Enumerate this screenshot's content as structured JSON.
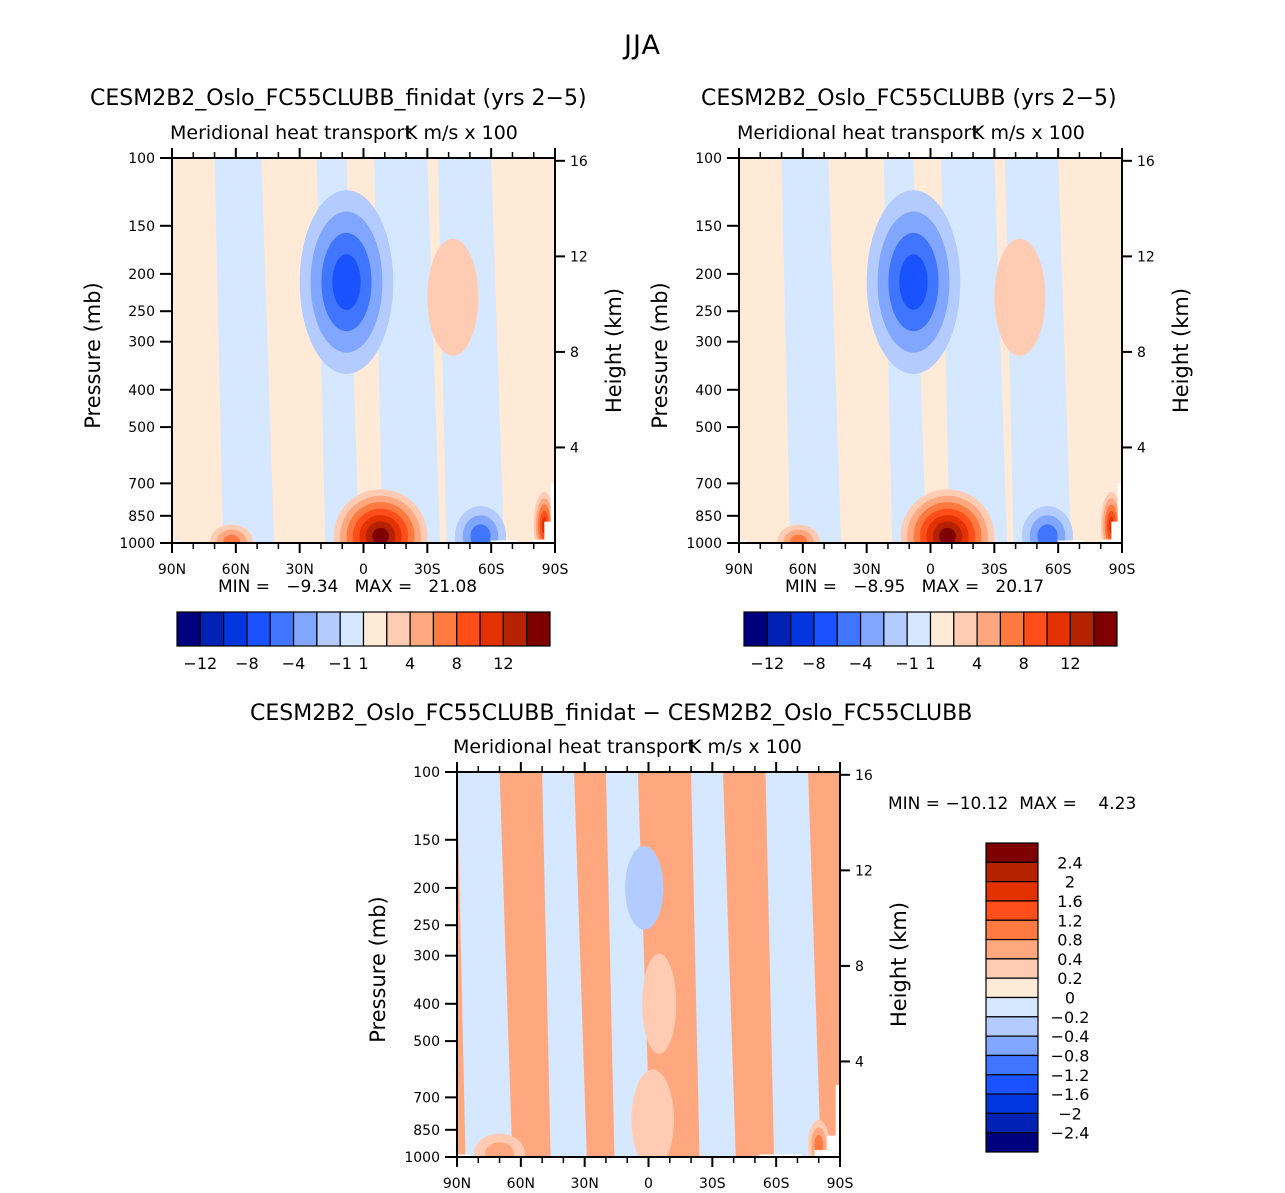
{
  "figure": {
    "title": "JJA"
  },
  "chart_data": [
    {
      "type": "heatmap",
      "id": "panel1",
      "title": "CESM2B2_Oslo_FC55CLUBB_finidat (yrs 2−5)",
      "subtitle_left": "Meridional heat transport",
      "subtitle_right": "K m/s x 100",
      "xlabel": "",
      "ylabel": "Pressure (mb)",
      "ylabel_right": "Height (km)",
      "x_ticks": [
        "90N",
        "60N",
        "30N",
        "0",
        "30S",
        "60S",
        "90S"
      ],
      "x_range": [
        90,
        -90
      ],
      "y_ticks": [
        "100",
        "150",
        "200",
        "250",
        "300",
        "400",
        "500",
        "700",
        "850",
        "1000"
      ],
      "y_range": [
        100,
        1000
      ],
      "y_scale": "log",
      "y_right_ticks": [
        "16",
        "12",
        "8",
        "4"
      ],
      "min_label": "MIN =",
      "min_value": "−9.34",
      "max_label": "MAX =",
      "max_value": "21.08",
      "colorbar": {
        "orientation": "horizontal",
        "levels": [
          "−12",
          "−8",
          "−4",
          "−1",
          "1",
          "4",
          "8",
          "12"
        ],
        "bounds": [
          -12,
          -10,
          -8,
          -6,
          -4,
          -2,
          -1,
          0,
          1,
          2,
          4,
          6,
          8,
          10,
          12
        ],
        "colors": [
          "#00007f",
          "#0022b4",
          "#0035e0",
          "#1a52ff",
          "#4075ff",
          "#80a6ff",
          "#b3cbff",
          "#d6e8ff",
          "#ffead8",
          "#ffcbb3",
          "#ffa880",
          "#ff7a40",
          "#ff4e1a",
          "#e33100",
          "#b42200",
          "#7f0000"
        ]
      },
      "features": [
        {
          "lat": 8,
          "p": 210,
          "dlat": 22,
          "dp": 0.55,
          "level": -6,
          "note": "upper-tropospheric negative core"
        },
        {
          "lat": -42,
          "p": 230,
          "dlat": 12,
          "dp": 0.35,
          "level": 1.5
        },
        {
          "lat": -8,
          "p": 960,
          "dlat": 22,
          "dp": 0.28,
          "level": 14,
          "note": "low-level positive maximum"
        },
        {
          "lat": -55,
          "p": 960,
          "dlat": 12,
          "dp": 0.18,
          "level": -4
        },
        {
          "lat": 62,
          "p": 990,
          "dlat": 10,
          "dp": 0.1,
          "level": 4
        },
        {
          "lat": -85,
          "p": 900,
          "dlat": 5,
          "dp": 0.2,
          "level": 8
        }
      ]
    },
    {
      "type": "heatmap",
      "id": "panel2",
      "title": "CESM2B2_Oslo_FC55CLUBB (yrs 2−5)",
      "subtitle_left": "Meridional heat transport",
      "subtitle_right": "K m/s x 100",
      "ylabel": "Pressure (mb)",
      "ylabel_right": "Height (km)",
      "x_ticks": [
        "90N",
        "60N",
        "30N",
        "0",
        "30S",
        "60S",
        "90S"
      ],
      "x_range": [
        90,
        -90
      ],
      "y_ticks": [
        "100",
        "150",
        "200",
        "250",
        "300",
        "400",
        "500",
        "700",
        "850",
        "1000"
      ],
      "y_range": [
        100,
        1000
      ],
      "y_scale": "log",
      "y_right_ticks": [
        "16",
        "12",
        "8",
        "4"
      ],
      "min_label": "MIN =",
      "min_value": "−8.95",
      "max_label": "MAX =",
      "max_value": "20.17",
      "colorbar": {
        "orientation": "horizontal",
        "levels": [
          "−12",
          "−8",
          "−4",
          "−1",
          "1",
          "4",
          "8",
          "12"
        ],
        "bounds": [
          -12,
          -10,
          -8,
          -6,
          -4,
          -2,
          -1,
          0,
          1,
          2,
          4,
          6,
          8,
          10,
          12
        ],
        "colors": [
          "#00007f",
          "#0022b4",
          "#0035e0",
          "#1a52ff",
          "#4075ff",
          "#80a6ff",
          "#b3cbff",
          "#d6e8ff",
          "#ffead8",
          "#ffcbb3",
          "#ffa880",
          "#ff7a40",
          "#ff4e1a",
          "#e33100",
          "#b42200",
          "#7f0000"
        ]
      },
      "features": [
        {
          "lat": 8,
          "p": 210,
          "dlat": 22,
          "dp": 0.55,
          "level": -6
        },
        {
          "lat": -42,
          "p": 230,
          "dlat": 12,
          "dp": 0.35,
          "level": 1.5
        },
        {
          "lat": -8,
          "p": 960,
          "dlat": 22,
          "dp": 0.28,
          "level": 14
        },
        {
          "lat": -55,
          "p": 960,
          "dlat": 12,
          "dp": 0.18,
          "level": -4
        },
        {
          "lat": 62,
          "p": 990,
          "dlat": 10,
          "dp": 0.1,
          "level": 4
        },
        {
          "lat": -85,
          "p": 900,
          "dlat": 5,
          "dp": 0.2,
          "level": 8
        }
      ]
    },
    {
      "type": "heatmap",
      "id": "panel3",
      "title": "CESM2B2_Oslo_FC55CLUBB_finidat − CESM2B2_Oslo_FC55CLUBB",
      "subtitle_left": "Meridional heat transport",
      "subtitle_right": "K m/s x 100",
      "ylabel": "Pressure (mb)",
      "ylabel_right": "Height (km)",
      "x_ticks": [
        "90N",
        "60N",
        "30N",
        "0",
        "30S",
        "60S",
        "90S"
      ],
      "x_range": [
        90,
        -90
      ],
      "y_ticks": [
        "100",
        "150",
        "200",
        "250",
        "300",
        "400",
        "500",
        "700",
        "850",
        "1000"
      ],
      "y_range": [
        100,
        1000
      ],
      "y_scale": "log",
      "y_right_ticks": [
        "16",
        "12",
        "8",
        "4"
      ],
      "min_label": "MIN =",
      "min_value": "−10.12",
      "max_label": "MAX =",
      "max_value": "4.23",
      "colorbar": {
        "orientation": "vertical",
        "levels": [
          "2.4",
          "2",
          "1.6",
          "1.2",
          "0.8",
          "0.4",
          "0.2",
          "0",
          "−0.2",
          "−0.4",
          "−0.8",
          "−1.2",
          "−1.6",
          "−2",
          "−2.4"
        ],
        "bounds": [
          -2.4,
          -2,
          -1.6,
          -1.2,
          -0.8,
          -0.4,
          -0.2,
          0,
          0.2,
          0.4,
          0.8,
          1.2,
          1.6,
          2,
          2.4
        ],
        "colors": [
          "#00007f",
          "#0022b4",
          "#0035e0",
          "#1a52ff",
          "#4075ff",
          "#80a6ff",
          "#b3cbff",
          "#d6e8ff",
          "#ffead8",
          "#ffcbb3",
          "#ffa880",
          "#ff7a40",
          "#ff4e1a",
          "#e33100",
          "#b42200",
          "#7f0000"
        ]
      },
      "features": [
        {
          "lat": 2,
          "p": 200,
          "dlat": 9,
          "dp": 0.25,
          "level": -0.3
        },
        {
          "lat": -5,
          "p": 400,
          "dlat": 8,
          "dp": 0.3,
          "level": 0.3
        },
        {
          "lat": -2,
          "p": 800,
          "dlat": 10,
          "dp": 0.3,
          "level": 0.25
        },
        {
          "lat": 70,
          "p": 980,
          "dlat": 12,
          "dp": 0.12,
          "level": 0.5
        },
        {
          "lat": -80,
          "p": 930,
          "dlat": 5,
          "dp": 0.15,
          "level": 1.0
        }
      ]
    }
  ]
}
